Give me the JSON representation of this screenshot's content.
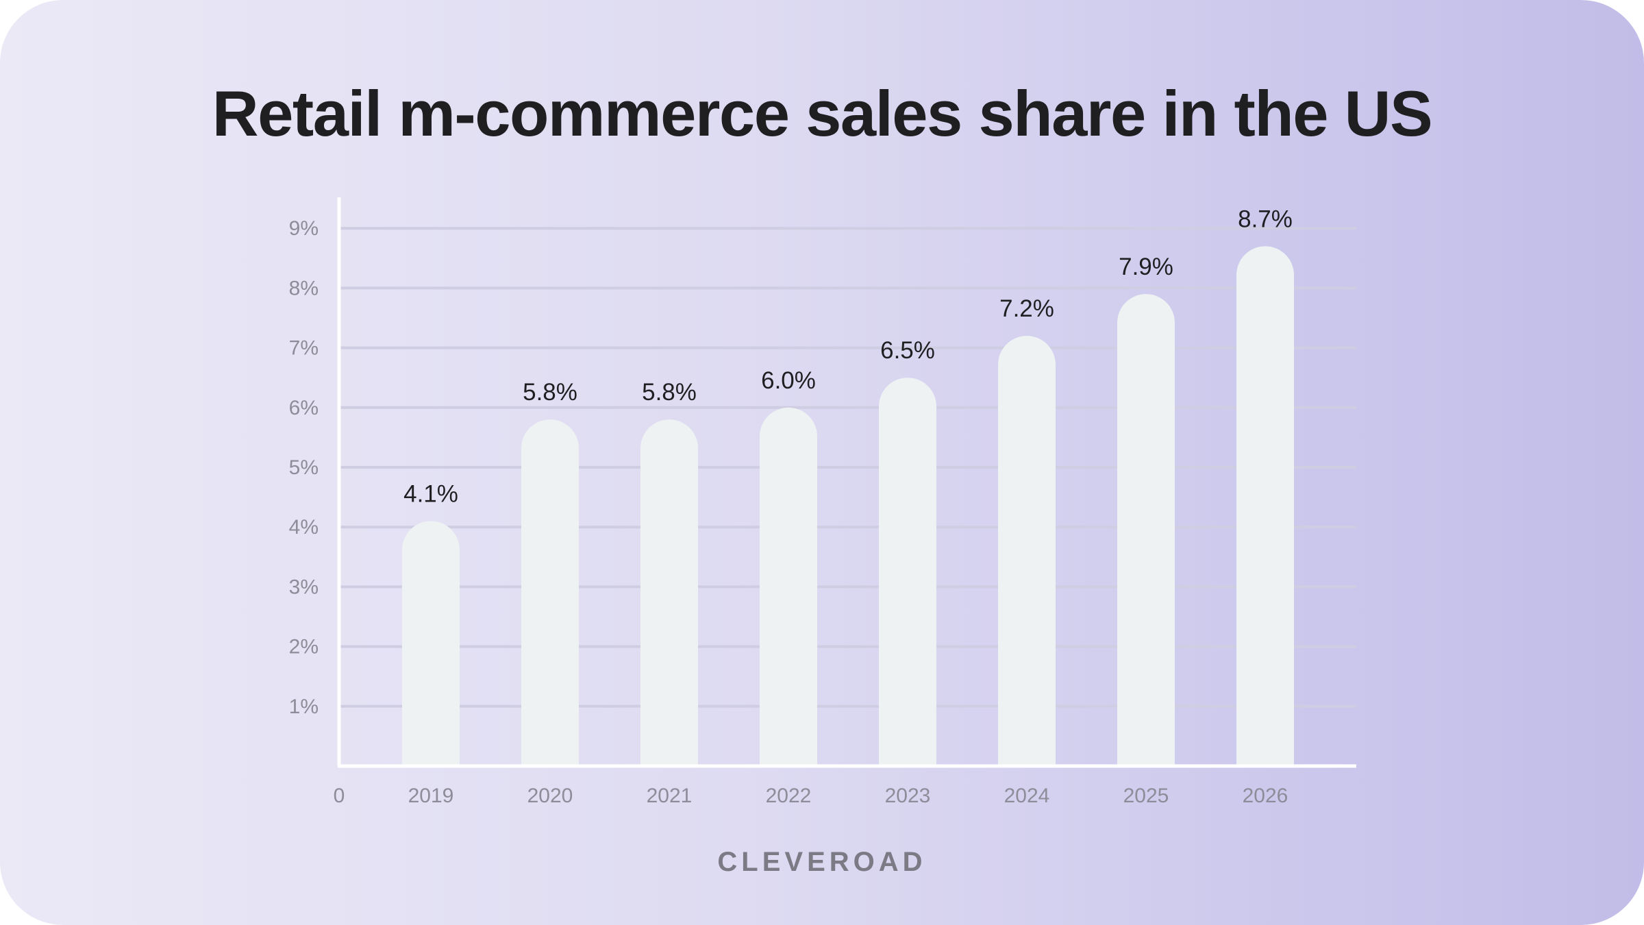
{
  "title": "Retail m-commerce sales share in the US",
  "brand": "CLEVEROAD",
  "colors": {
    "bar": "#eef2f2",
    "grid": "#cfcde2",
    "axis": "#ffffff",
    "title": "#1f1f22",
    "tick": "#8e8c99"
  },
  "chart_data": {
    "type": "bar",
    "categories": [
      "2019",
      "2020",
      "2021",
      "2022",
      "2023",
      "2024",
      "2025",
      "2026"
    ],
    "values": [
      4.1,
      5.8,
      5.8,
      6.0,
      6.5,
      7.2,
      7.9,
      8.7
    ],
    "data_labels": [
      "4.1%",
      "5.8%",
      "5.8%",
      "6.0%",
      "6.5%",
      "7.2%",
      "7.9%",
      "8.7%"
    ],
    "y_ticks": [
      1,
      2,
      3,
      4,
      5,
      6,
      7,
      8,
      9
    ],
    "y_tick_labels": [
      "1%",
      "2%",
      "3%",
      "4%",
      "5%",
      "6%",
      "7%",
      "8%",
      "9%"
    ],
    "origin_label": "0",
    "ylim": [
      0,
      9
    ],
    "grid": true,
    "legend": "none"
  }
}
